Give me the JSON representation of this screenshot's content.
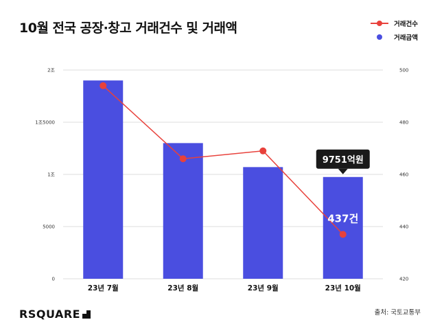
{
  "title": "10월 전국 공장·창고 거래건수 및 거래액",
  "legend": {
    "items": [
      {
        "label": "거래건수"
      },
      {
        "label": "거래금액"
      }
    ]
  },
  "colors": {
    "bar": "#4a4ee0",
    "line": "#e8413b",
    "grid": "#dcdcdc",
    "callout": "#1a1a1a"
  },
  "brand": "RSQUARE",
  "source": "출처: 국토교통부",
  "chart_data": {
    "type": "bar",
    "categories": [
      "23년 7월",
      "23년 8월",
      "23년 9월",
      "23년 10월"
    ],
    "series": [
      {
        "name": "거래금액",
        "type": "bar",
        "axis": "left",
        "values": [
          19000,
          13000,
          10700,
          9751
        ]
      },
      {
        "name": "거래건수",
        "type": "line",
        "axis": "right",
        "values": [
          494,
          466,
          469,
          437
        ]
      }
    ],
    "y_left": {
      "ylim": [
        0,
        20000
      ],
      "ticks": [
        0,
        5000,
        10000,
        15000,
        20000
      ],
      "tick_labels": [
        "0",
        "5000",
        "1조",
        "1조5000",
        "2조"
      ]
    },
    "y_right": {
      "ylim": [
        420,
        500
      ],
      "ticks": [
        420,
        440,
        460,
        480,
        500
      ],
      "tick_labels": [
        "420",
        "440",
        "460",
        "480",
        "500"
      ]
    },
    "annotations": {
      "bar_callout": "9751억원",
      "line_label": "437건"
    },
    "grid": true,
    "legend_position": "top-right"
  }
}
